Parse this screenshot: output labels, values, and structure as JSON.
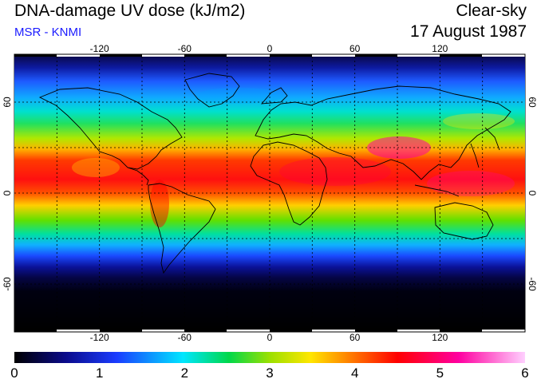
{
  "header": {
    "title": "DNA-damage UV dose (kJ/m2)",
    "source": "MSR - KNMI",
    "condition": "Clear-sky",
    "date": "17 August 1987"
  },
  "map": {
    "lon_ticks": [
      "-120",
      "-60",
      "0",
      "60",
      "120"
    ],
    "lat_ticks": [
      "60",
      "0",
      "-60"
    ],
    "lon_range": [
      -180,
      180
    ],
    "lat_range": [
      -90,
      90
    ],
    "gridlines": "dashed every 30 degrees"
  },
  "colorbar": {
    "tick_labels": [
      "0",
      "1",
      "2",
      "3",
      "4",
      "5",
      "6"
    ],
    "range": [
      0,
      6
    ],
    "colors": [
      "#000000",
      "#0a0a8a",
      "#1a3cff",
      "#00e6ff",
      "#00d84a",
      "#9be000",
      "#ffe600",
      "#ff7a00",
      "#ff0000",
      "#ff00a0",
      "#ffd0ff"
    ]
  }
}
